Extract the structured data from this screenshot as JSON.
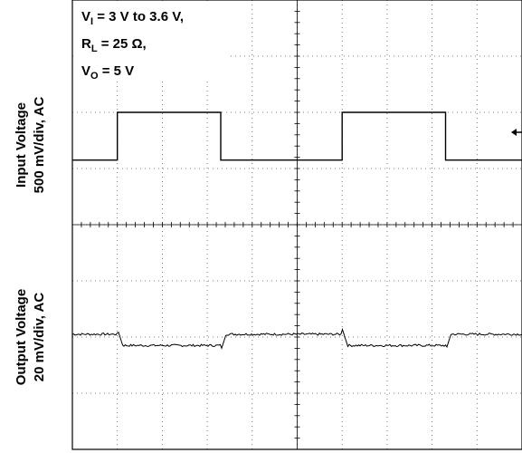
{
  "chart_data": {
    "type": "line",
    "annotation": {
      "line1": {
        "prefix": "V",
        "sub": "I",
        "suffix": " = 3 V to 3.6 V,"
      },
      "line2": {
        "prefix": "R",
        "sub": "L",
        "suffix": " = 25 Ω,"
      },
      "line3": {
        "prefix": "V",
        "sub": "O",
        "suffix": " = 5 V"
      }
    },
    "y_axis_labels": {
      "input": {
        "line1": "Input Voltage",
        "line2": "500 mV/div, AC"
      },
      "output": {
        "line1": "Output Voltage",
        "line2": "20 mV/div, AC"
      }
    },
    "x_divisions": 10,
    "y_divisions": 8,
    "grid": true,
    "marker_icon": "arrow-left-icon",
    "series": [
      {
        "channel": "input",
        "baseline_div": 5.15,
        "high_div": 6.0,
        "edges_div": [
          1.0,
          3.3,
          6.0,
          8.3
        ],
        "high_segments": [
          [
            1.0,
            3.3
          ],
          [
            6.0,
            8.3
          ]
        ]
      },
      {
        "channel": "output",
        "baseline_div": 2.05,
        "low_div": 1.85,
        "high_segments": [
          [
            1.0,
            3.3
          ],
          [
            6.0,
            8.3
          ]
        ],
        "spike_rise_div": 0.3,
        "spike_fall_div": 0.3
      }
    ]
  }
}
